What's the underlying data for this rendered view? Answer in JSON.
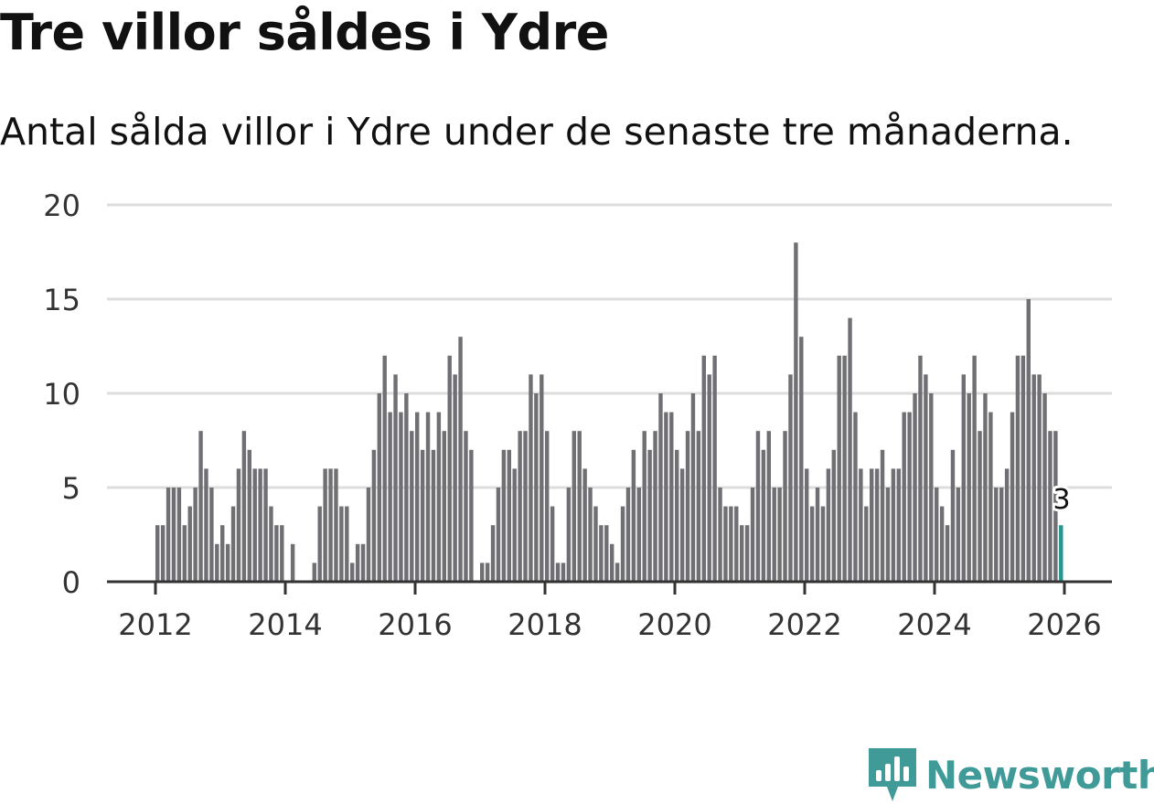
{
  "title": "Tre villor såldes i Ydre",
  "subtitle": "Antal sålda villor i Ydre under de senaste tre månaderna.",
  "brand": "Newsworthy",
  "colors": {
    "bar": "#707074",
    "highlight": "#23968f",
    "grid": "#dddddd",
    "axis": "#333333",
    "brand": "#3f9a98"
  },
  "chart_data": {
    "type": "bar",
    "title": "Tre villor såldes i Ydre",
    "subtitle": "Antal sålda villor i Ydre under de senaste tre månaderna.",
    "xlabel": "",
    "ylabel": "",
    "ylim": [
      0,
      20
    ],
    "y_ticks": [
      0,
      5,
      10,
      15,
      20
    ],
    "x_ticks": [
      "2012",
      "2014",
      "2016",
      "2018",
      "2020",
      "2022",
      "2024",
      "2026"
    ],
    "start": "2012-01",
    "frequency": "monthly",
    "values": [
      3,
      3,
      5,
      5,
      5,
      3,
      4,
      5,
      8,
      6,
      5,
      2,
      3,
      2,
      4,
      6,
      8,
      7,
      6,
      6,
      6,
      4,
      3,
      3,
      0,
      2,
      0,
      0,
      0,
      1,
      4,
      6,
      6,
      6,
      4,
      4,
      1,
      2,
      2,
      5,
      7,
      10,
      12,
      9,
      11,
      9,
      10,
      8,
      9,
      7,
      9,
      7,
      9,
      8,
      12,
      11,
      13,
      8,
      7,
      0,
      1,
      1,
      3,
      5,
      7,
      7,
      6,
      8,
      8,
      11,
      10,
      11,
      8,
      4,
      1,
      1,
      5,
      8,
      8,
      6,
      5,
      4,
      3,
      3,
      2,
      1,
      4,
      5,
      7,
      5,
      8,
      7,
      8,
      10,
      9,
      9,
      7,
      6,
      8,
      10,
      8,
      12,
      11,
      12,
      5,
      4,
      4,
      4,
      3,
      3,
      5,
      8,
      7,
      8,
      5,
      5,
      8,
      11,
      18,
      13,
      6,
      4,
      5,
      4,
      6,
      7,
      12,
      12,
      14,
      9,
      6,
      4,
      6,
      6,
      7,
      5,
      6,
      6,
      9,
      9,
      10,
      12,
      11,
      10,
      5,
      4,
      3,
      7,
      5,
      11,
      10,
      12,
      8,
      10,
      9,
      5,
      5,
      6,
      9,
      12,
      12,
      15,
      11,
      11,
      10,
      8,
      8,
      3
    ],
    "highlight": {
      "label": "3",
      "value": 3,
      "period": "2026-01"
    }
  }
}
